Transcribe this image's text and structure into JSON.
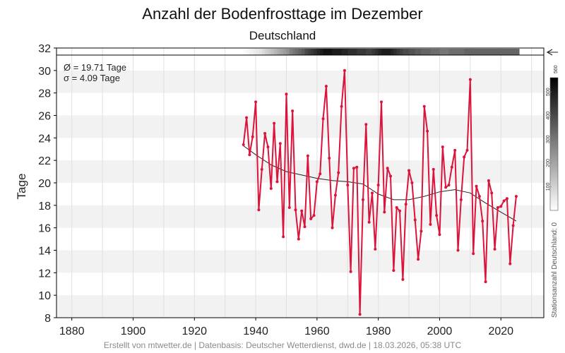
{
  "chart_data": {
    "type": "line",
    "title": "Anzahl der Bodenfrosttage im Dezember",
    "subtitle": "Deutschland",
    "ylabel": "Tage",
    "xlabel": "",
    "xlim": [
      1875,
      2034
    ],
    "ylim": [
      8,
      32
    ],
    "xticks": [
      1880,
      1900,
      1920,
      1940,
      1960,
      1980,
      2000,
      2020
    ],
    "yticks": [
      8,
      10,
      12,
      14,
      16,
      18,
      20,
      22,
      24,
      26,
      28,
      30,
      32
    ],
    "grid": true,
    "stats": [
      "Ø = 19.71 Tage",
      "σ = 4.09 Tage"
    ],
    "series": [
      {
        "color": "#dc143c",
        "x": [
          1936,
          1937,
          1938,
          1939,
          1940,
          1941,
          1942,
          1943,
          1944,
          1945,
          1946,
          1947,
          1948,
          1949,
          1950,
          1951,
          1952,
          1953,
          1954,
          1955,
          1956,
          1957,
          1958,
          1959,
          1960,
          1961,
          1962,
          1963,
          1964,
          1965,
          1966,
          1967,
          1968,
          1969,
          1970,
          1971,
          1972,
          1973,
          1974,
          1975,
          1976,
          1977,
          1978,
          1979,
          1980,
          1981,
          1982,
          1983,
          1984,
          1985,
          1986,
          1987,
          1988,
          1989,
          1990,
          1991,
          1992,
          1993,
          1994,
          1995,
          1996,
          1997,
          1998,
          1999,
          2000,
          2001,
          2002,
          2003,
          2004,
          2005,
          2006,
          2007,
          2008,
          2009,
          2010,
          2011,
          2012,
          2013,
          2014,
          2015,
          2016,
          2017,
          2018,
          2019,
          2020,
          2021,
          2022,
          2023,
          2024,
          2025
        ],
        "values": [
          23.4,
          25.8,
          22.5,
          24.1,
          27.2,
          17.6,
          21.2,
          24.4,
          23.2,
          19.5,
          25.3,
          20.1,
          23.5,
          15.2,
          27.9,
          17.8,
          26.4,
          17.6,
          15.0,
          17.5,
          16.1,
          22.4,
          16.8,
          17.1,
          20.1,
          20.8,
          25.7,
          28.6,
          22.2,
          16.0,
          18.9,
          20.9,
          26.8,
          30.0,
          19.8,
          12.1,
          21.3,
          21.4,
          8.3,
          18.5,
          25.2,
          16.5,
          19.1,
          14.1,
          19.8,
          27.2,
          17.4,
          21.3,
          20.6,
          12.2,
          17.8,
          17.5,
          11.4,
          18.1,
          21.1,
          20.0,
          16.7,
          13.2,
          15.7,
          26.8,
          24.6,
          16.3,
          21.2,
          17.1,
          15.4,
          23.2,
          19.6,
          19.8,
          21.4,
          22.9,
          14.0,
          18.5,
          22.3,
          22.9,
          29.2,
          13.7,
          19.7,
          18.8,
          16.6,
          11.2,
          20.2,
          19.1,
          14.1,
          17.8,
          17.9,
          18.4,
          18.6,
          12.8,
          16.2,
          18.8
        ]
      },
      {
        "color": "#222222",
        "x": [
          1936,
          1940,
          1945,
          1950,
          1955,
          1960,
          1965,
          1970,
          1975,
          1980,
          1985,
          1990,
          1995,
          2000,
          2005,
          2010,
          2015,
          2020,
          2025
        ],
        "values": [
          23.3,
          22.5,
          21.6,
          21.0,
          20.7,
          20.4,
          20.2,
          20.1,
          19.9,
          19.0,
          18.5,
          18.5,
          18.8,
          19.2,
          19.4,
          19.1,
          18.2,
          17.4,
          16.6
        ]
      }
    ],
    "colorbar": {
      "label": "Stationsanzahl Deutschland: 0",
      "max_label": "560",
      "max": 560,
      "ticks": [
        100,
        200,
        300,
        400,
        500
      ]
    },
    "station_strip": {
      "x_start": 1936,
      "x_end": 2025,
      "counts": [
        10,
        20,
        30,
        40,
        50,
        60,
        80,
        100,
        120,
        140,
        160,
        180,
        200,
        220,
        240,
        280,
        300,
        320,
        340,
        360,
        400,
        420,
        440,
        460,
        480,
        500,
        520,
        520,
        520,
        500,
        500,
        500,
        480,
        480,
        460,
        460,
        460,
        440,
        440,
        440,
        420,
        420,
        440,
        460,
        480,
        500,
        500,
        500,
        480,
        460,
        440,
        420,
        400,
        400,
        380,
        380,
        360,
        360,
        340,
        340,
        340,
        320,
        320,
        320,
        300,
        300,
        300,
        320,
        320,
        320,
        320,
        320,
        340,
        340,
        340,
        340,
        340,
        340,
        340,
        340,
        340,
        340,
        340,
        340,
        340,
        340,
        340,
        340,
        340,
        340
      ]
    }
  },
  "footer": "Erstellt von mtwetter.de | Datenbasis: Deutscher Wetterdienst, dwd.de | 18.03.2026, 05:38 UTC"
}
